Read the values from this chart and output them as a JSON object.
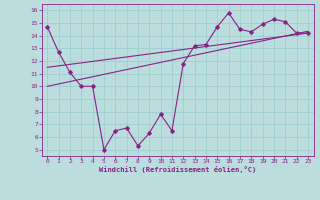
{
  "x": [
    0,
    1,
    2,
    3,
    4,
    5,
    6,
    7,
    8,
    9,
    10,
    11,
    12,
    13,
    14,
    15,
    16,
    17,
    18,
    19,
    20,
    21,
    22,
    23
  ],
  "y_main": [
    14.7,
    12.7,
    11.1,
    10.0,
    10.0,
    5.0,
    6.5,
    6.7,
    5.3,
    6.3,
    7.8,
    6.5,
    11.8,
    13.2,
    13.3,
    14.7,
    15.8,
    14.5,
    14.3,
    14.9,
    15.3,
    15.1,
    14.2,
    14.2
  ],
  "trend1_x": [
    0,
    23
  ],
  "trend1_y": [
    11.5,
    14.2
  ],
  "trend2_x": [
    0,
    23
  ],
  "trend2_y": [
    10.0,
    14.35
  ],
  "color": "#882288",
  "bg_color": "#bbdddd",
  "grid_color": "#99cccc",
  "xlabel": "Windchill (Refroidissement éolien,°C)",
  "xlim": [
    -0.5,
    23.5
  ],
  "ylim": [
    4.5,
    16.5
  ],
  "xticks": [
    0,
    1,
    2,
    3,
    4,
    5,
    6,
    7,
    8,
    9,
    10,
    11,
    12,
    13,
    14,
    15,
    16,
    17,
    18,
    19,
    20,
    21,
    22,
    23
  ],
  "yticks": [
    5,
    6,
    7,
    8,
    9,
    10,
    11,
    12,
    13,
    14,
    15,
    16
  ]
}
